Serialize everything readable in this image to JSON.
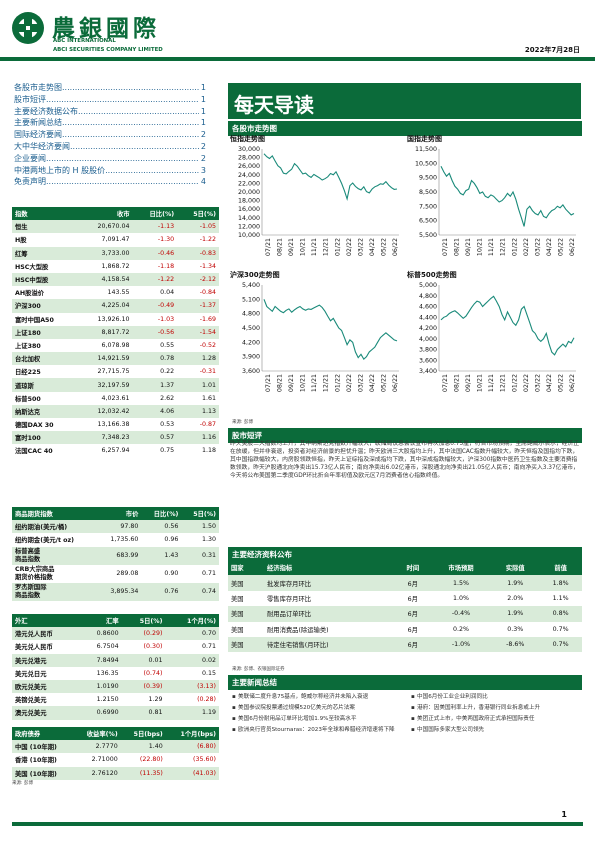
{
  "header": {
    "logo_cn": "農銀國際",
    "logo_en1": "ABC INTERNATIONAL",
    "logo_en2": "ABCI SECURITIES COMPANY LIMITED",
    "date": "2022年7月28日",
    "colors": {
      "brand_green": "#0b6b3a",
      "row_alt": "#d9ebd9",
      "neg_red": "#c00000"
    }
  },
  "toc": [
    {
      "title": "各股市走势图",
      "page": "1"
    },
    {
      "title": "股市短评",
      "page": "1"
    },
    {
      "title": "主要经济数据公布",
      "page": "1"
    },
    {
      "title": "主要新闻总结",
      "page": "1"
    },
    {
      "title": "国际经济要闻",
      "page": "2"
    },
    {
      "title": "大中华经济要闻",
      "page": "2"
    },
    {
      "title": "企业要闻",
      "page": "2"
    },
    {
      "title": "中港两地上市的 H 股股价",
      "page": "3"
    },
    {
      "title": "免责声明",
      "page": "4"
    }
  ],
  "indices": {
    "headers": [
      "指数",
      "收市",
      "日比(%)",
      "5日(%)"
    ],
    "rows": [
      [
        "恒生",
        "20,670.04",
        "-1.13",
        "-1.05"
      ],
      [
        "H股",
        "7,091.47",
        "-1.30",
        "-1.22"
      ],
      [
        "红筹",
        "3,733.00",
        "-0.46",
        "-0.83"
      ],
      [
        "HSC大型股",
        "1,868.72",
        "-1.18",
        "-1.34"
      ],
      [
        "HSC中型股",
        "4,158.54",
        "-1.22",
        "-2.12"
      ],
      [
        "AH股溢价",
        "143.55",
        "0.04",
        "-0.84"
      ],
      [
        "沪深300",
        "4,225.04",
        "-0.49",
        "-1.37"
      ],
      [
        "富时中国A50",
        "13,926.10",
        "-1.03",
        "-1.69"
      ],
      [
        "上证180",
        "8,817.72",
        "-0.56",
        "-1.54"
      ],
      [
        "上证380",
        "6,078.98",
        "0.55",
        "-0.52"
      ],
      [
        "台北加权",
        "14,921.59",
        "0.78",
        "1.28"
      ],
      [
        "日经225",
        "27,715.75",
        "0.22",
        "-0.31"
      ],
      [
        "道琼斯",
        "32,197.59",
        "1.37",
        "1.01"
      ],
      [
        "标普500",
        "4,023.61",
        "2.62",
        "1.61"
      ],
      [
        "纳斯达克",
        "12,032.42",
        "4.06",
        "1.13"
      ],
      [
        "德国DAX 30",
        "13,166.38",
        "0.53",
        "-0.87"
      ],
      [
        "富时100",
        "7,348.23",
        "0.57",
        "1.16"
      ],
      [
        "法国CAC 40",
        "6,257.94",
        "0.75",
        "1.18"
      ]
    ]
  },
  "commodities": {
    "headers": [
      "商品期货指数",
      "市价",
      "日比(%)",
      "5日(%)"
    ],
    "rows": [
      [
        "纽约期油(美元/桶)",
        "97.80",
        "0.56",
        "1.50"
      ],
      [
        "纽约期金(美元/t oz)",
        "1,735.60",
        "0.96",
        "1.30"
      ],
      [
        "标普高盛\n商品指数",
        "683.99",
        "1.43",
        "0.31"
      ],
      [
        "CRB大宗商品\n期货价格指数",
        "289.08",
        "0.90",
        "0.71"
      ],
      [
        "罗杰斯国际\n商品指数",
        "3,895.34",
        "0.76",
        "0.74"
      ]
    ]
  },
  "fx": {
    "headers": [
      "外汇",
      "汇率",
      "5日(%)",
      "1个月(%)"
    ],
    "rows": [
      [
        "港元兑人民币",
        "0.8600",
        "(0.29)",
        "0.70"
      ],
      [
        "美元兑人民币",
        "6.7504",
        "(0.30)",
        "0.71"
      ],
      [
        "美元兑港元",
        "7.8494",
        "0.01",
        "0.02"
      ],
      [
        "美元兑日元",
        "136.35",
        "(0.74)",
        "0.15"
      ],
      [
        "欧元兑美元",
        "1.0190",
        "(0.39)",
        "(3.13)"
      ],
      [
        "英镑兑美元",
        "1.2150",
        "1.29",
        "(0.28)"
      ],
      [
        "澳元兑美元",
        "0.6990",
        "0.81",
        "1.19"
      ]
    ]
  },
  "bonds": {
    "headers": [
      "政府债券",
      "收益率(%)",
      "5日(bps)",
      "1个月(bps)"
    ],
    "rows": [
      [
        "中国 (10年期)",
        "2.7770",
        "1.40",
        "(6.80)"
      ],
      [
        "香港 (10年期)",
        "2.71000",
        "(22.80)",
        "(35.60)"
      ],
      [
        "美国 (10年期)",
        "2.76120",
        "(11.35)",
        "(41.03)"
      ]
    ]
  },
  "sources": {
    "left": "来源: 彭博",
    "charts": "来源: 彭博",
    "econ": "来源: 彭博、农银国际证券"
  },
  "daily": {
    "title": "每天导读",
    "charts_section": "各股市走势图",
    "comment_section": "股市短评",
    "econ_section": "主要经济资料公布",
    "news_section": "主要新闻总结"
  },
  "chart_data": [
    {
      "type": "line",
      "title": "恒指走势图",
      "ylim": [
        10000,
        30000
      ],
      "yticks": [
        "30,000",
        "28,000",
        "26,000",
        "24,000",
        "22,000",
        "20,000",
        "18,000",
        "16,000",
        "14,000",
        "12,000",
        "10,000"
      ],
      "xticks": [
        "07/21",
        "08/21",
        "09/21",
        "10/21",
        "11/21",
        "12/21",
        "01/22",
        "02/22",
        "03/22",
        "04/22",
        "05/22",
        "06/22"
      ],
      "values": [
        28900,
        28200,
        27800,
        28400,
        27200,
        26100,
        25600,
        24400,
        24200,
        24800,
        25300,
        26600,
        26000,
        25100,
        24200,
        24400,
        23800,
        23400,
        24100,
        23700,
        23300,
        22800,
        23100,
        23500,
        24300,
        24000,
        24700,
        23400,
        22000,
        20300,
        18400,
        21500,
        22100,
        21300,
        20800,
        20500,
        21200,
        20100,
        19800,
        20700,
        21200,
        21500,
        21900,
        21800,
        22400,
        21600,
        21000,
        20600,
        20700
      ]
    },
    {
      "type": "line",
      "title": "国指走势图",
      "ylim": [
        5500,
        11500
      ],
      "yticks": [
        "11,500",
        "10,500",
        "9,500",
        "8,500",
        "7,500",
        "6,500",
        "5,500"
      ],
      "xticks": [
        "07/21",
        "08/21",
        "09/21",
        "10/21",
        "11/21",
        "12/21",
        "01/22",
        "02/22",
        "03/22",
        "04/22",
        "05/22",
        "06/22"
      ],
      "values": [
        10300,
        9900,
        9600,
        9800,
        9300,
        8900,
        8700,
        8400,
        8300,
        8600,
        8700,
        9300,
        9100,
        8800,
        8400,
        8500,
        8200,
        8100,
        8300,
        8200,
        8000,
        7800,
        7900,
        8100,
        8400,
        8200,
        8500,
        8000,
        7300,
        6700,
        6100,
        7300,
        7500,
        7200,
        7000,
        6900,
        7200,
        6800,
        6700,
        7000,
        7200,
        7300,
        7500,
        7400,
        7600,
        7300,
        7100,
        6900,
        7000
      ]
    },
    {
      "type": "line",
      "title": "沪深300走势图",
      "ylim": [
        3600,
        5400
      ],
      "yticks": [
        "5,400",
        "5,100",
        "4,800",
        "4,500",
        "4,200",
        "3,900",
        "3,600"
      ],
      "xticks": [
        "07/21",
        "08/21",
        "09/21",
        "10/21",
        "11/21",
        "12/21",
        "01/22",
        "02/22",
        "03/22",
        "04/22",
        "05/22",
        "06/22"
      ],
      "values": [
        5100,
        4950,
        4900,
        4850,
        4950,
        4900,
        4850,
        4820,
        4870,
        4900,
        4830,
        4880,
        4920,
        4950,
        4900,
        4870,
        4900,
        4890,
        4920,
        4950,
        4980,
        4930,
        4850,
        4750,
        4650,
        4700,
        4600,
        4500,
        4450,
        4300,
        4150,
        4250,
        4200,
        4000,
        3880,
        3950,
        3850,
        3900,
        4000,
        4050,
        4100,
        4200,
        4300,
        4350,
        4400,
        4350,
        4300,
        4250,
        4230
      ]
    },
    {
      "type": "line",
      "title": "标普500走势图",
      "ylim": [
        3400,
        5000
      ],
      "yticks": [
        "5,000",
        "4,800",
        "4,600",
        "4,400",
        "4,200",
        "4,000",
        "3,800",
        "3,600",
        "3,400"
      ],
      "xticks": [
        "07/21",
        "08/21",
        "09/21",
        "10/21",
        "11/21",
        "12/21",
        "01/22",
        "02/22",
        "03/22",
        "04/22",
        "05/22",
        "06/22"
      ],
      "values": [
        4350,
        4400,
        4420,
        4470,
        4500,
        4520,
        4480,
        4430,
        4380,
        4420,
        4500,
        4580,
        4650,
        4700,
        4680,
        4600,
        4650,
        4700,
        4750,
        4790,
        4700,
        4600,
        4450,
        4350,
        4500,
        4400,
        4300,
        4250,
        4350,
        4550,
        4600,
        4450,
        4300,
        4150,
        4100,
        4000,
        3950,
        4000,
        4100,
        3900,
        3750,
        3700,
        3800,
        3850,
        3900,
        3850,
        3950,
        3920,
        4020
      ]
    }
  ],
  "comment": "昨天美股三大指数均上升，其中纳斯达克指数升幅较大，联储局议息会议宣布再次加息0.75厘，符合市场预期，主席鲍威尔表示，经济正在放缓，但并非衰退，投资者对经济前景的担忧升温；昨天欧洲三大股指均上升，其中法国CAC指数升幅较大，昨天恒指及国指均下跌，其中国指跌幅较大，内房股领跌恒指，昨天上证综指及深成指均下跌，其中深成指跌幅较大，沪深300指数中医药卫生指数及主要消费指数领跌，昨天沪股通北向净卖出15.73亿人民币；南向净卖出6.02亿港币，深股通北向净卖出21.05亿人民币；南向净买入3.37亿港币，今天将公布美国第二季度GDP环比折合年率初值及欧元区7月消费者信心指数终值。",
  "econ": {
    "headers": [
      "国家",
      "经济指标",
      "时间",
      "市场预期",
      "实际值",
      "前值"
    ],
    "rows": [
      [
        "美国",
        "批发库存月环比",
        "6月",
        "1.5%",
        "1.9%",
        "1.8%"
      ],
      [
        "美国",
        "零售库存月环比",
        "6月",
        "1.0%",
        "2.0%",
        "1.1%"
      ],
      [
        "美国",
        "耐用品订单环比",
        "6月",
        "-0.4%",
        "1.9%",
        "0.8%"
      ],
      [
        "美国",
        "耐用消费品(除运输类)",
        "6月",
        "0.2%",
        "0.3%",
        "0.7%"
      ],
      [
        "美国",
        "待定住宅销售(月环比)",
        "6月",
        "-1.0%",
        "-8.6%",
        "0.7%"
      ]
    ]
  },
  "news": {
    "left": [
      "美联储二度升息75基点，鲍威尔称经济并未陷入衰退",
      "美国参议院投票通过规模520亿美元的芯片法案",
      "美国6月份耐用品订单环比增加1.9%至较高水平",
      "欧洲央行官员Stournaras：2023年全球和希腊经济增速将下降"
    ],
    "right": [
      "中国6月份工业企业利润同比",
      "港府：因美国利率上升，香港银行同业拆息或上升",
      "美团正式上市，中美两国政府正式承担国际责任",
      "中国国际多家大型公司领先"
    ]
  },
  "page_no": "1"
}
